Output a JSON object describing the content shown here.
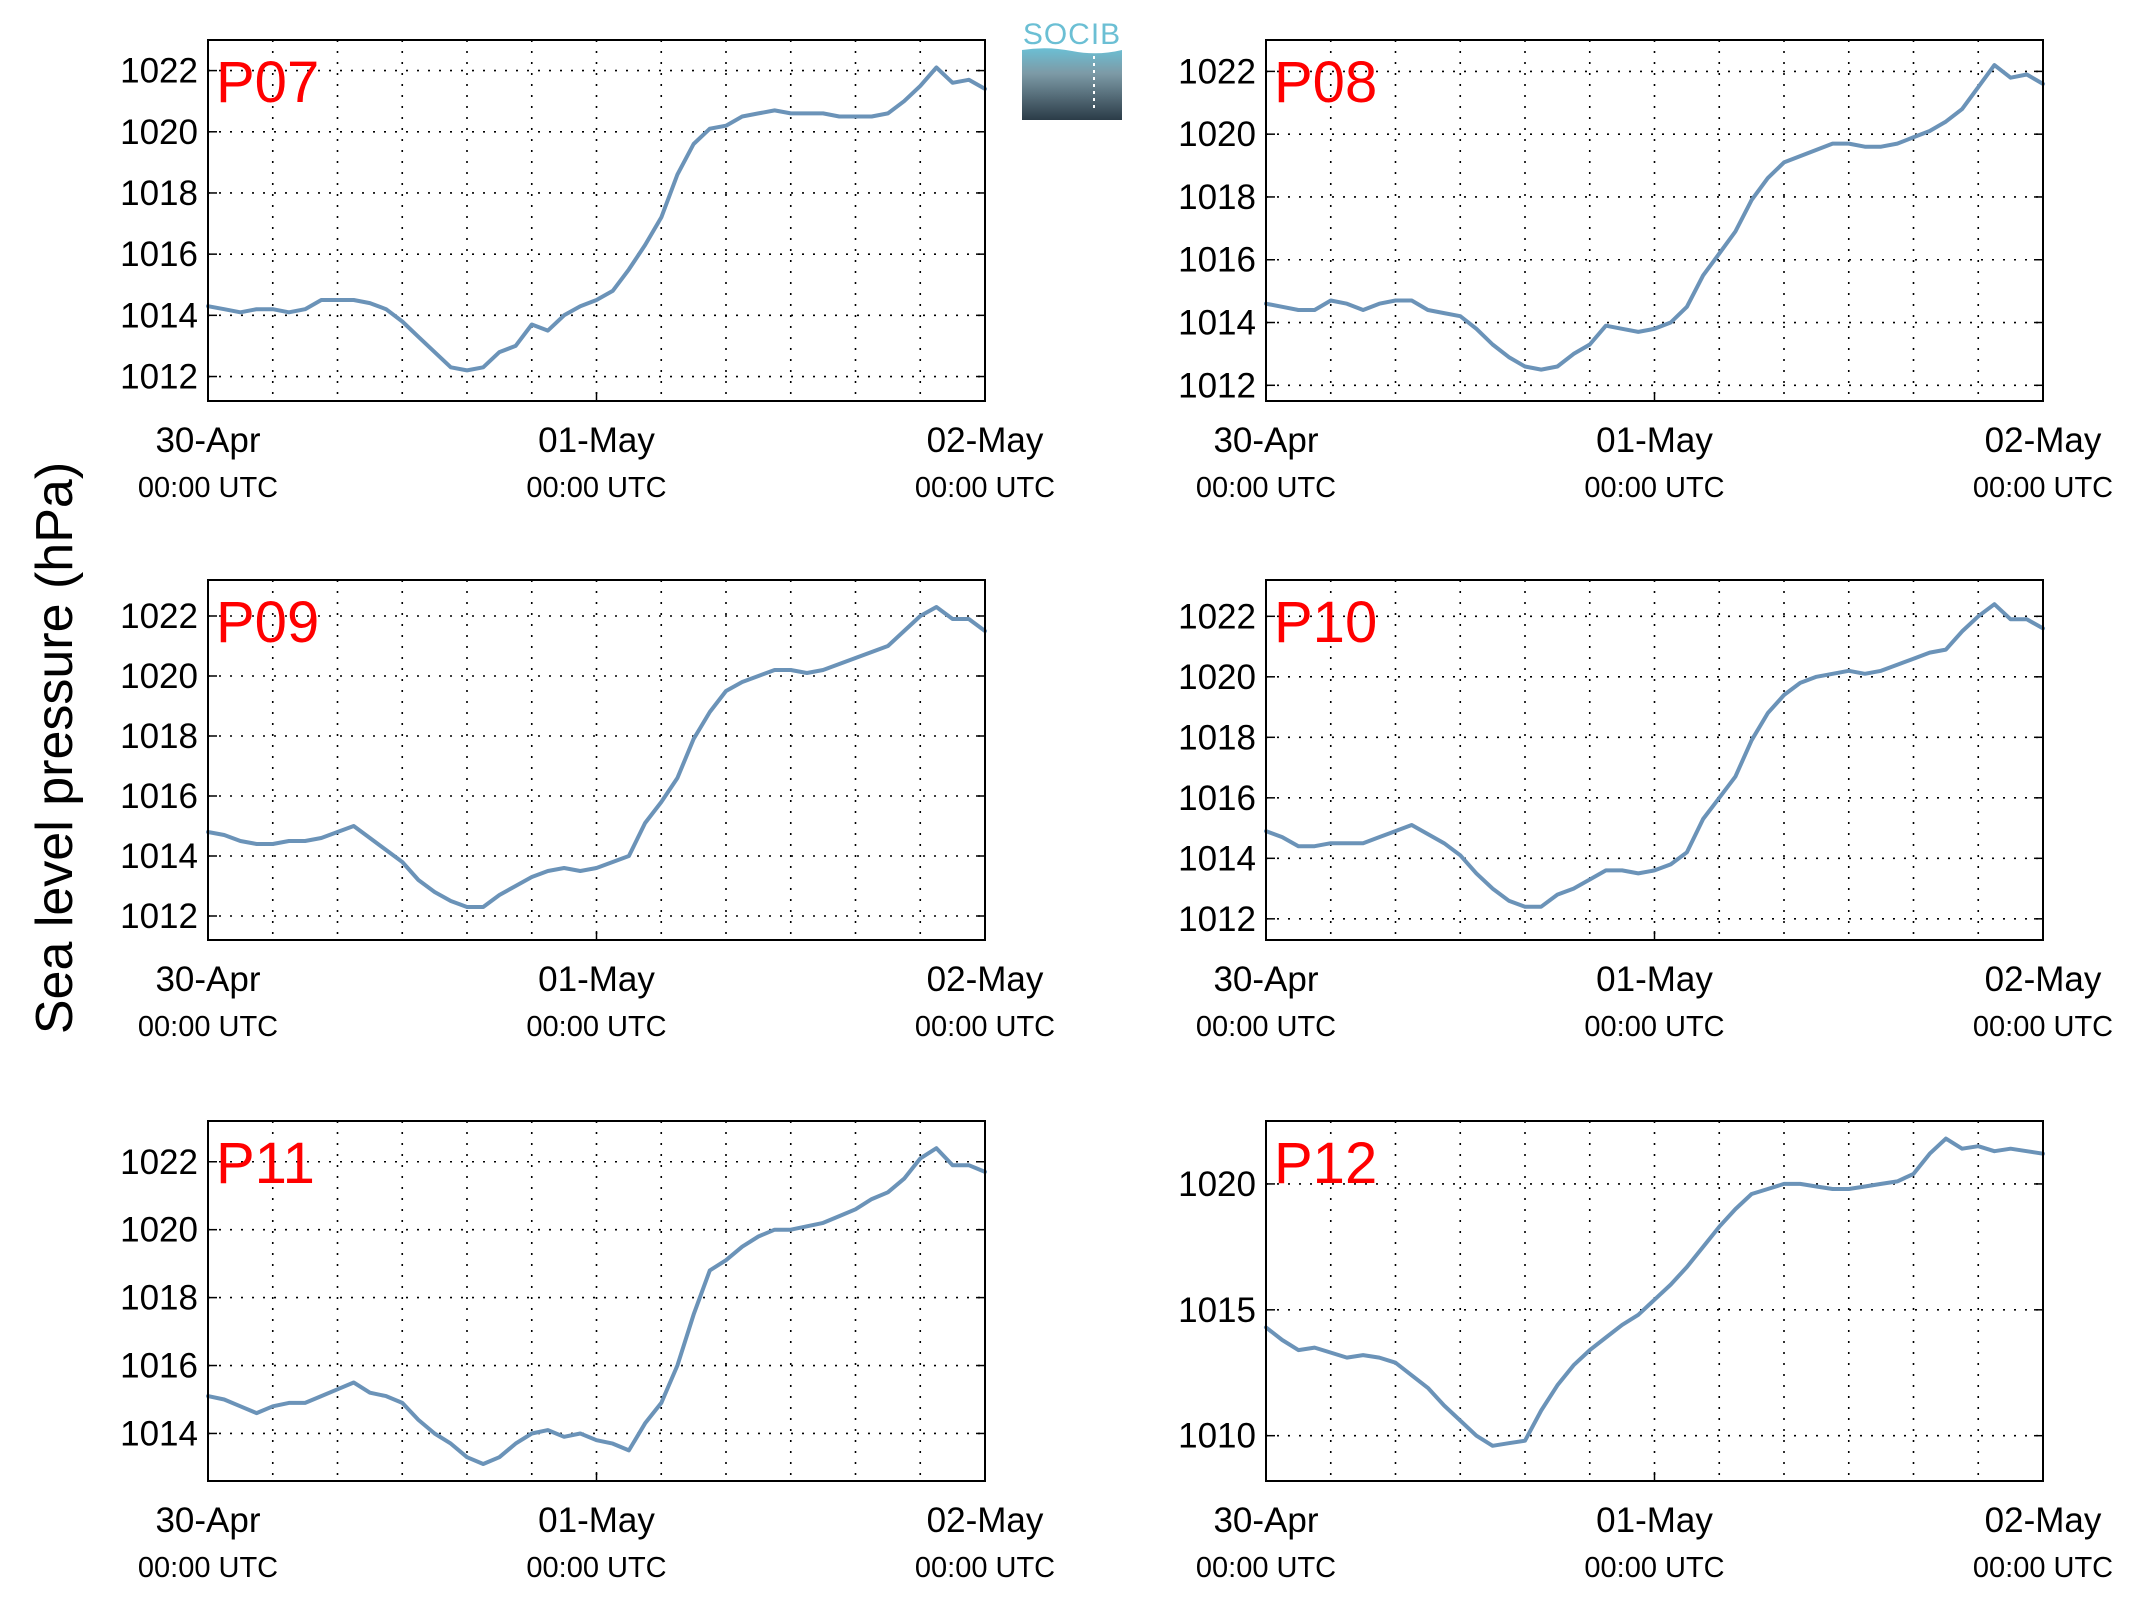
{
  "figure": {
    "ylabel": "Sea level pressure (hPa)",
    "logo_text": "SOCIB",
    "colors": {
      "line": "#6b93b8",
      "title": "#ff0000",
      "logo_top": "#6bbfd4",
      "logo_bottom": "#2b3c48"
    }
  },
  "chart_data": [
    {
      "type": "line",
      "title": "P07",
      "xlim": [
        0,
        48
      ],
      "ylim": [
        1011.2,
        1023.0
      ],
      "yticks": [
        1012,
        1014,
        1016,
        1018,
        1020,
        1022
      ],
      "xticks": [
        {
          "x": 0,
          "date": "30-Apr",
          "time": "00:00 UTC"
        },
        {
          "x": 24,
          "date": "01-May",
          "time": "00:00 UTC"
        },
        {
          "x": 48,
          "date": "02-May",
          "time": "00:00 UTC"
        }
      ],
      "grid": true,
      "series": [
        {
          "x": [
            0,
            1,
            2,
            3,
            4,
            5,
            6,
            7,
            8,
            9,
            10,
            11,
            12,
            13,
            14,
            15,
            16,
            17,
            18,
            19,
            20,
            21,
            22,
            23,
            24,
            25,
            26,
            27,
            28,
            29,
            30,
            31,
            32,
            33,
            34,
            35,
            36,
            37,
            38,
            39,
            40,
            41,
            42,
            43,
            44,
            45,
            46,
            47,
            48
          ],
          "values": [
            1014.3,
            1014.2,
            1014.1,
            1014.2,
            1014.2,
            1014.1,
            1014.2,
            1014.5,
            1014.5,
            1014.5,
            1014.4,
            1014.2,
            1013.8,
            1013.3,
            1012.8,
            1012.3,
            1012.2,
            1012.3,
            1012.8,
            1013.0,
            1013.7,
            1013.5,
            1014.0,
            1014.3,
            1014.5,
            1014.8,
            1015.5,
            1016.3,
            1017.2,
            1018.6,
            1019.6,
            1020.1,
            1020.2,
            1020.5,
            1020.6,
            1020.7,
            1020.6,
            1020.6,
            1020.6,
            1020.5,
            1020.5,
            1020.5,
            1020.6,
            1021.0,
            1021.5,
            1022.1,
            1021.6,
            1021.7,
            1021.4
          ]
        }
      ]
    },
    {
      "type": "line",
      "title": "P08",
      "xlim": [
        0,
        48
      ],
      "ylim": [
        1011.5,
        1023.0
      ],
      "yticks": [
        1012,
        1014,
        1016,
        1018,
        1020,
        1022
      ],
      "xticks": [
        {
          "x": 0,
          "date": "30-Apr",
          "time": "00:00 UTC"
        },
        {
          "x": 24,
          "date": "01-May",
          "time": "00:00 UTC"
        },
        {
          "x": 48,
          "date": "02-May",
          "time": "00:00 UTC"
        }
      ],
      "grid": true,
      "series": [
        {
          "x": [
            0,
            1,
            2,
            3,
            4,
            5,
            6,
            7,
            8,
            9,
            10,
            11,
            12,
            13,
            14,
            15,
            16,
            17,
            18,
            19,
            20,
            21,
            22,
            23,
            24,
            25,
            26,
            27,
            28,
            29,
            30,
            31,
            32,
            33,
            34,
            35,
            36,
            37,
            38,
            39,
            40,
            41,
            42,
            43,
            44,
            45,
            46,
            47,
            48
          ],
          "values": [
            1014.6,
            1014.5,
            1014.4,
            1014.4,
            1014.7,
            1014.6,
            1014.4,
            1014.6,
            1014.7,
            1014.7,
            1014.4,
            1014.3,
            1014.2,
            1013.8,
            1013.3,
            1012.9,
            1012.6,
            1012.5,
            1012.6,
            1013.0,
            1013.3,
            1013.9,
            1013.8,
            1013.7,
            1013.8,
            1014.0,
            1014.5,
            1015.5,
            1016.2,
            1016.9,
            1017.9,
            1018.6,
            1019.1,
            1019.3,
            1019.5,
            1019.7,
            1019.7,
            1019.6,
            1019.6,
            1019.7,
            1019.9,
            1020.1,
            1020.4,
            1020.8,
            1021.5,
            1022.2,
            1021.8,
            1021.9,
            1021.6
          ]
        }
      ]
    },
    {
      "type": "line",
      "title": "P09",
      "xlim": [
        0,
        48
      ],
      "ylim": [
        1011.2,
        1023.2
      ],
      "yticks": [
        1012,
        1014,
        1016,
        1018,
        1020,
        1022
      ],
      "xticks": [
        {
          "x": 0,
          "date": "30-Apr",
          "time": "00:00 UTC"
        },
        {
          "x": 24,
          "date": "01-May",
          "time": "00:00 UTC"
        },
        {
          "x": 48,
          "date": "02-May",
          "time": "00:00 UTC"
        }
      ],
      "grid": true,
      "series": [
        {
          "x": [
            0,
            1,
            2,
            3,
            4,
            5,
            6,
            7,
            8,
            9,
            10,
            11,
            12,
            13,
            14,
            15,
            16,
            17,
            18,
            19,
            20,
            21,
            22,
            23,
            24,
            25,
            26,
            27,
            28,
            29,
            30,
            31,
            32,
            33,
            34,
            35,
            36,
            37,
            38,
            39,
            40,
            41,
            42,
            43,
            44,
            45,
            46,
            47,
            48
          ],
          "values": [
            1014.8,
            1014.7,
            1014.5,
            1014.4,
            1014.4,
            1014.5,
            1014.5,
            1014.6,
            1014.8,
            1015.0,
            1014.6,
            1014.2,
            1013.8,
            1013.2,
            1012.8,
            1012.5,
            1012.3,
            1012.3,
            1012.7,
            1013.0,
            1013.3,
            1013.5,
            1013.6,
            1013.5,
            1013.6,
            1013.8,
            1014.0,
            1015.1,
            1015.8,
            1016.6,
            1017.9,
            1018.8,
            1019.5,
            1019.8,
            1020.0,
            1020.2,
            1020.2,
            1020.1,
            1020.2,
            1020.4,
            1020.6,
            1020.8,
            1021.0,
            1021.5,
            1022.0,
            1022.3,
            1021.9,
            1021.9,
            1021.5
          ]
        }
      ]
    },
    {
      "type": "line",
      "title": "P10",
      "xlim": [
        0,
        48
      ],
      "ylim": [
        1011.3,
        1023.2
      ],
      "yticks": [
        1012,
        1014,
        1016,
        1018,
        1020,
        1022
      ],
      "xticks": [
        {
          "x": 0,
          "date": "30-Apr",
          "time": "00:00 UTC"
        },
        {
          "x": 24,
          "date": "01-May",
          "time": "00:00 UTC"
        },
        {
          "x": 48,
          "date": "02-May",
          "time": "00:00 UTC"
        }
      ],
      "grid": true,
      "series": [
        {
          "x": [
            0,
            1,
            2,
            3,
            4,
            5,
            6,
            7,
            8,
            9,
            10,
            11,
            12,
            13,
            14,
            15,
            16,
            17,
            18,
            19,
            20,
            21,
            22,
            23,
            24,
            25,
            26,
            27,
            28,
            29,
            30,
            31,
            32,
            33,
            34,
            35,
            36,
            37,
            38,
            39,
            40,
            41,
            42,
            43,
            44,
            45,
            46,
            47,
            48
          ],
          "values": [
            1014.9,
            1014.7,
            1014.4,
            1014.4,
            1014.5,
            1014.5,
            1014.5,
            1014.7,
            1014.9,
            1015.1,
            1014.8,
            1014.5,
            1014.1,
            1013.5,
            1013.0,
            1012.6,
            1012.4,
            1012.4,
            1012.8,
            1013.0,
            1013.3,
            1013.6,
            1013.6,
            1013.5,
            1013.6,
            1013.8,
            1014.2,
            1015.3,
            1016.0,
            1016.7,
            1017.9,
            1018.8,
            1019.4,
            1019.8,
            1020.0,
            1020.1,
            1020.2,
            1020.1,
            1020.2,
            1020.4,
            1020.6,
            1020.8,
            1020.9,
            1021.5,
            1022.0,
            1022.4,
            1021.9,
            1021.9,
            1021.6
          ]
        }
      ]
    },
    {
      "type": "line",
      "title": "P11",
      "xlim": [
        0,
        48
      ],
      "ylim": [
        1012.6,
        1023.2
      ],
      "yticks": [
        1014,
        1016,
        1018,
        1020,
        1022
      ],
      "xticks": [
        {
          "x": 0,
          "date": "30-Apr",
          "time": "00:00 UTC"
        },
        {
          "x": 24,
          "date": "01-May",
          "time": "00:00 UTC"
        },
        {
          "x": 48,
          "date": "02-May",
          "time": "00:00 UTC"
        }
      ],
      "grid": true,
      "series": [
        {
          "x": [
            0,
            1,
            2,
            3,
            4,
            5,
            6,
            7,
            8,
            9,
            10,
            11,
            12,
            13,
            14,
            15,
            16,
            17,
            18,
            19,
            20,
            21,
            22,
            23,
            24,
            25,
            26,
            27,
            28,
            29,
            30,
            31,
            32,
            33,
            34,
            35,
            36,
            37,
            38,
            39,
            40,
            41,
            42,
            43,
            44,
            45,
            46,
            47,
            48
          ],
          "values": [
            1015.1,
            1015.0,
            1014.8,
            1014.6,
            1014.8,
            1014.9,
            1014.9,
            1015.1,
            1015.3,
            1015.5,
            1015.2,
            1015.1,
            1014.9,
            1014.4,
            1014.0,
            1013.7,
            1013.3,
            1013.1,
            1013.3,
            1013.7,
            1014.0,
            1014.1,
            1013.9,
            1014.0,
            1013.8,
            1013.7,
            1013.5,
            1014.3,
            1014.9,
            1016.0,
            1017.5,
            1018.8,
            1019.1,
            1019.5,
            1019.8,
            1020.0,
            1020.0,
            1020.1,
            1020.2,
            1020.4,
            1020.6,
            1020.9,
            1021.1,
            1021.5,
            1022.1,
            1022.4,
            1021.9,
            1021.9,
            1021.7
          ]
        }
      ]
    },
    {
      "type": "line",
      "title": "P12",
      "xlim": [
        0,
        48
      ],
      "ylim": [
        1008.2,
        1022.5
      ],
      "yticks": [
        1010,
        1015,
        1020
      ],
      "xticks": [
        {
          "x": 0,
          "date": "30-Apr",
          "time": "00:00 UTC"
        },
        {
          "x": 24,
          "date": "01-May",
          "time": "00:00 UTC"
        },
        {
          "x": 48,
          "date": "02-May",
          "time": "00:00 UTC"
        }
      ],
      "grid": true,
      "series": [
        {
          "x": [
            0,
            1,
            2,
            3,
            4,
            5,
            6,
            7,
            8,
            9,
            10,
            11,
            12,
            13,
            14,
            15,
            16,
            17,
            18,
            19,
            20,
            21,
            22,
            23,
            24,
            25,
            26,
            27,
            28,
            29,
            30,
            31,
            32,
            33,
            34,
            35,
            36,
            37,
            38,
            39,
            40,
            41,
            42,
            43,
            44,
            45,
            46,
            47,
            48
          ],
          "values": [
            1014.3,
            1013.8,
            1013.4,
            1013.5,
            1013.3,
            1013.1,
            1013.2,
            1013.1,
            1012.9,
            1012.4,
            1011.9,
            1011.2,
            1010.6,
            1010.0,
            1009.6,
            1009.7,
            1009.8,
            1011.0,
            1012.0,
            1012.8,
            1013.4,
            1013.9,
            1014.4,
            1014.8,
            1015.4,
            1016.0,
            1016.7,
            1017.5,
            1018.3,
            1019.0,
            1019.6,
            1019.8,
            1020.0,
            1020.0,
            1019.9,
            1019.8,
            1019.8,
            1019.9,
            1020.0,
            1020.1,
            1020.4,
            1021.2,
            1021.8,
            1021.4,
            1021.5,
            1021.3,
            1021.4,
            1021.3,
            1021.2
          ]
        }
      ]
    }
  ]
}
